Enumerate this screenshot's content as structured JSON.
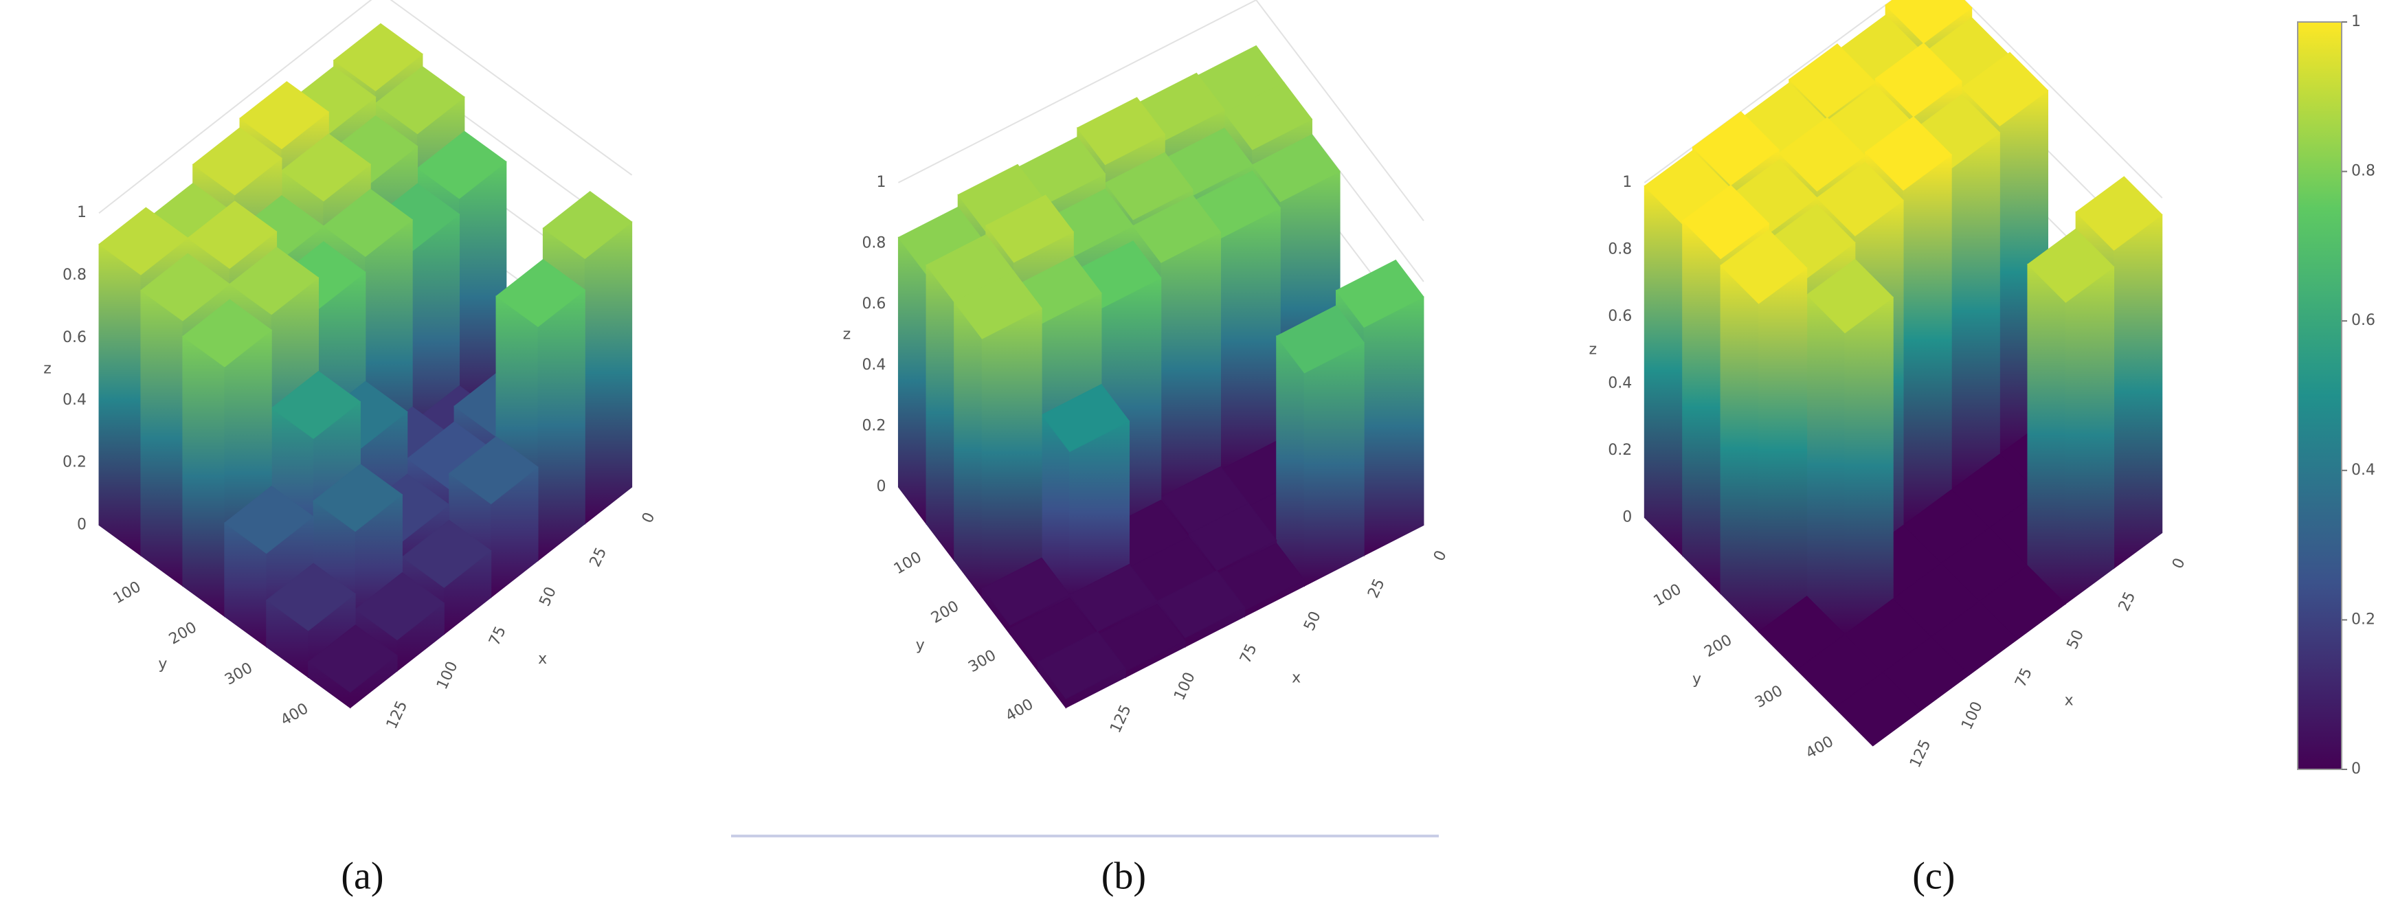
{
  "chart_data": [
    {
      "type": "surface",
      "caption": "(a)",
      "x_label": "x",
      "y_label": "y",
      "z_label": "z",
      "xlim": [
        0,
        140
      ],
      "xticks": [
        0,
        25,
        50,
        75,
        100,
        125
      ],
      "ylim": [
        0,
        450
      ],
      "yticks": [
        100,
        200,
        300,
        400
      ],
      "zlim": [
        0,
        1
      ],
      "zticks": [
        0,
        0.2,
        0.4,
        0.6,
        0.8,
        1
      ],
      "colorscale": "viridis",
      "z": [
        [
          0.05,
          0.1,
          0.15,
          0.3,
          0.75,
          0.85
        ],
        [
          0.15,
          0.35,
          0.2,
          0.25,
          0.3,
          0.1
        ],
        [
          0.3,
          0.55,
          0.4,
          0.2,
          0.15,
          0.08
        ],
        [
          0.8,
          0.85,
          0.75,
          0.8,
          0.7,
          0.75
        ],
        [
          0.85,
          0.9,
          0.8,
          0.88,
          0.82,
          0.86
        ],
        [
          0.9,
          0.86,
          0.92,
          0.95,
          0.88,
          0.9
        ]
      ]
    },
    {
      "type": "surface",
      "caption": "(b)",
      "x_label": "x",
      "y_label": "y",
      "z_label": "z",
      "xlim": [
        0,
        140
      ],
      "xticks": [
        0,
        25,
        50,
        75,
        100,
        125
      ],
      "ylim": [
        0,
        450
      ],
      "yticks": [
        100,
        200,
        300,
        400
      ],
      "zlim": [
        0,
        1
      ],
      "zticks": [
        0,
        0.2,
        0.4,
        0.6,
        0.8,
        1
      ],
      "colorscale": "viridis",
      "z": [
        [
          0.03,
          0.02,
          0.03,
          0.02,
          0.7,
          0.75
        ],
        [
          0.02,
          0.03,
          0.02,
          0.03,
          0.02,
          0.03
        ],
        [
          0.03,
          0.5,
          0.02,
          0.03,
          0.02,
          0.02
        ],
        [
          0.85,
          0.8,
          0.75,
          0.8,
          0.78,
          0.8
        ],
        [
          0.85,
          0.88,
          0.8,
          0.82,
          0.8,
          0.85
        ],
        [
          0.82,
          0.86,
          0.85,
          0.88,
          0.86,
          0.85
        ]
      ]
    },
    {
      "type": "surface",
      "caption": "(c)",
      "x_label": "x",
      "y_label": "y",
      "z_label": "z",
      "xlim": [
        0,
        140
      ],
      "xticks": [
        0,
        25,
        50,
        75,
        100,
        125
      ],
      "ylim": [
        0,
        450
      ],
      "yticks": [
        100,
        200,
        300,
        400
      ],
      "zlim": [
        0,
        1
      ],
      "zticks": [
        0,
        0.2,
        0.4,
        0.6,
        0.8,
        1
      ],
      "colorscale": "viridis",
      "z": [
        [
          0,
          0,
          0,
          0,
          0.9,
          0.95
        ],
        [
          0,
          0,
          0,
          0,
          0,
          0
        ],
        [
          0,
          0.9,
          0,
          0,
          0,
          0
        ],
        [
          0.98,
          0.95,
          0.97,
          1,
          0.96,
          0.98
        ],
        [
          1,
          0.97,
          0.99,
          0.98,
          1,
          0.97
        ],
        [
          0.99,
          1,
          0.98,
          0.99,
          0.97,
          1
        ]
      ]
    },
    {
      "type": "colorbar",
      "colorscale": "viridis",
      "lim": [
        0,
        1
      ],
      "ticks": [
        0,
        0.2,
        0.4,
        0.6,
        0.8,
        1
      ]
    }
  ]
}
